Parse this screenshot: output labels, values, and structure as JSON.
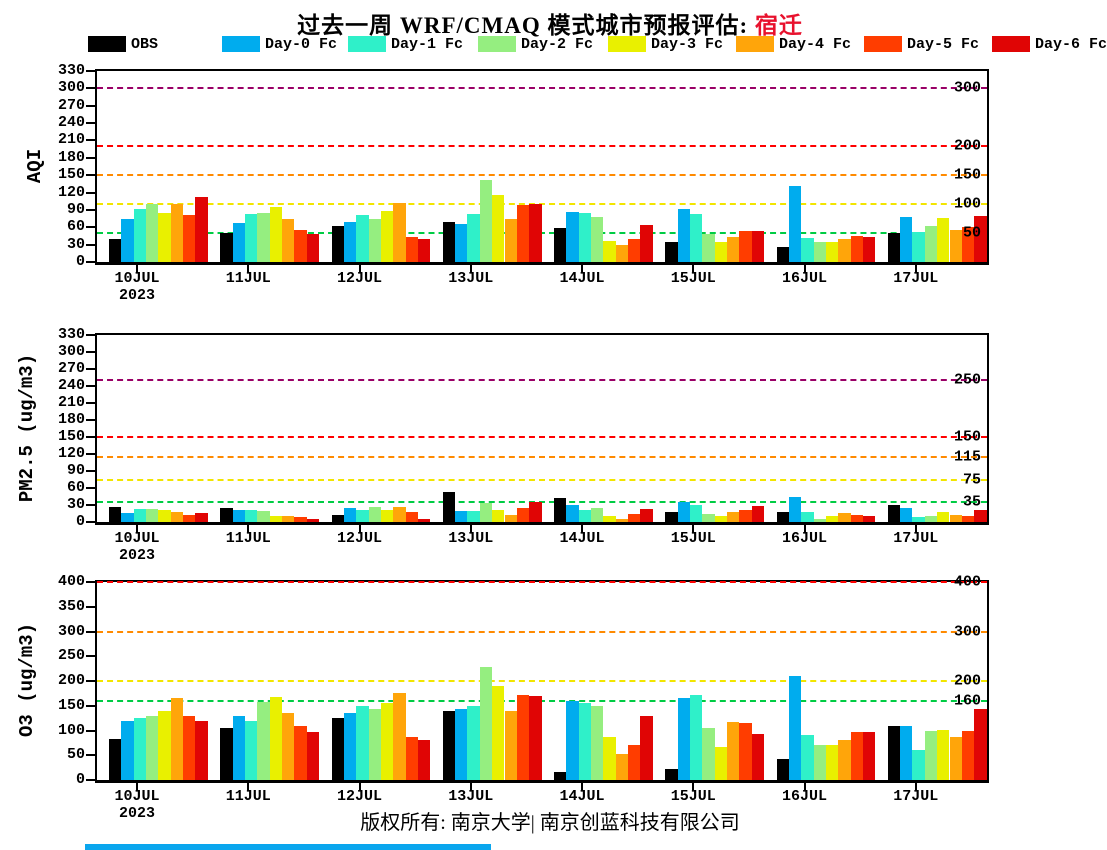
{
  "title": {
    "prefix": "过去一周 WRF/CMAQ 模式城市预报评估: ",
    "city": "宿迁",
    "city_color": "#e8112d"
  },
  "footer": {
    "copyright": "版权所有: 南京大学| 南京创蓝科技有限公司"
  },
  "year_label": "2023",
  "legend": [
    {
      "label": "OBS",
      "color": "#000000"
    },
    {
      "label": "Day-0 Fc",
      "color": "#00acee"
    },
    {
      "label": "Day-1 Fc",
      "color": "#2ff0c9"
    },
    {
      "label": "Day-2 Fc",
      "color": "#95ee80"
    },
    {
      "label": "Day-3 Fc",
      "color": "#e9f000"
    },
    {
      "label": "Day-4 Fc",
      "color": "#ffa50a"
    },
    {
      "label": "Day-5 Fc",
      "color": "#ff3d00"
    },
    {
      "label": "Day-6 Fc",
      "color": "#e00505"
    }
  ],
  "chart_data": [
    {
      "type": "bar",
      "id": "aqi",
      "ylabel": "AQI",
      "ylim": [
        0,
        330
      ],
      "ytick_step": 30,
      "grid": false,
      "legend_position": "top",
      "categories": [
        "10JUL",
        "11JUL",
        "12JUL",
        "13JUL",
        "14JUL",
        "15JUL",
        "16JUL",
        "17JUL"
      ],
      "series": [
        {
          "name": "OBS",
          "color": "#000000",
          "values": [
            40,
            50,
            62,
            70,
            58,
            35,
            26,
            50
          ]
        },
        {
          "name": "Day-0 Fc",
          "color": "#00acee",
          "values": [
            75,
            68,
            70,
            65,
            86,
            92,
            132,
            77
          ]
        },
        {
          "name": "Day-1 Fc",
          "color": "#2ff0c9",
          "values": [
            91,
            83,
            81,
            83,
            84,
            83,
            42,
            51
          ]
        },
        {
          "name": "Day-2 Fc",
          "color": "#95ee80",
          "values": [
            100,
            85,
            75,
            141,
            78,
            48,
            35,
            62
          ]
        },
        {
          "name": "Day-3 Fc",
          "color": "#e9f000",
          "values": [
            84,
            95,
            89,
            115,
            36,
            34,
            35,
            76
          ]
        },
        {
          "name": "Day-4 Fc",
          "color": "#ffa50a",
          "values": [
            100,
            75,
            102,
            74,
            30,
            43,
            40,
            56
          ]
        },
        {
          "name": "Day-5 Fc",
          "color": "#ff3d00",
          "values": [
            82,
            56,
            43,
            98,
            40,
            54,
            45,
            61
          ]
        },
        {
          "name": "Day-6 Fc",
          "color": "#e00505",
          "values": [
            113,
            48,
            39,
            100,
            64,
            54,
            44,
            80
          ]
        }
      ],
      "ref_lines": [
        {
          "value": 50,
          "label": "50",
          "color": "#00cc44"
        },
        {
          "value": 100,
          "label": "100",
          "color": "#f2e500"
        },
        {
          "value": 150,
          "label": "150",
          "color": "#ff8a00"
        },
        {
          "value": 200,
          "label": "200",
          "color": "#ff0000"
        },
        {
          "value": 300,
          "label": "300",
          "color": "#990066"
        }
      ]
    },
    {
      "type": "bar",
      "id": "pm25",
      "ylabel": "PM2.5 (ug/m3)",
      "ylim": [
        0,
        330
      ],
      "ytick_step": 30,
      "grid": false,
      "categories": [
        "10JUL",
        "11JUL",
        "12JUL",
        "13JUL",
        "14JUL",
        "15JUL",
        "16JUL",
        "17JUL"
      ],
      "series": [
        {
          "name": "OBS",
          "color": "#000000",
          "values": [
            27,
            24,
            13,
            53,
            42,
            18,
            17,
            30
          ]
        },
        {
          "name": "Day-0 Fc",
          "color": "#00acee",
          "values": [
            16,
            21,
            24,
            20,
            30,
            36,
            45,
            24
          ]
        },
        {
          "name": "Day-1 Fc",
          "color": "#2ff0c9",
          "values": [
            23,
            21,
            21,
            20,
            22,
            30,
            18,
            9
          ]
        },
        {
          "name": "Day-2 Fc",
          "color": "#95ee80",
          "values": [
            23,
            19,
            26,
            33,
            25,
            15,
            6,
            11
          ]
        },
        {
          "name": "Day-3 Fc",
          "color": "#e9f000",
          "values": [
            22,
            11,
            21,
            21,
            11,
            10,
            10,
            17
          ]
        },
        {
          "name": "Day-4 Fc",
          "color": "#ffa50a",
          "values": [
            17,
            10,
            26,
            13,
            5,
            17,
            16,
            12
          ]
        },
        {
          "name": "Day-5 Fc",
          "color": "#ff3d00",
          "values": [
            12,
            8,
            18,
            24,
            15,
            21,
            13,
            11
          ]
        },
        {
          "name": "Day-6 Fc",
          "color": "#e00505",
          "values": [
            16,
            6,
            6,
            36,
            23,
            28,
            10,
            21
          ]
        }
      ],
      "ref_lines": [
        {
          "value": 35,
          "label": "35",
          "color": "#00cc44"
        },
        {
          "value": 75,
          "label": "75",
          "color": "#f2e500"
        },
        {
          "value": 115,
          "label": "115",
          "color": "#ff8a00"
        },
        {
          "value": 150,
          "label": "150",
          "color": "#ff0000"
        },
        {
          "value": 250,
          "label": "250",
          "color": "#990066"
        }
      ]
    },
    {
      "type": "bar",
      "id": "o3",
      "ylabel": "O3 (ug/m3)",
      "ylim": [
        0,
        400
      ],
      "ytick_step": 50,
      "grid": false,
      "categories": [
        "10JUL",
        "11JUL",
        "12JUL",
        "13JUL",
        "14JUL",
        "15JUL",
        "16JUL",
        "17JUL"
      ],
      "series": [
        {
          "name": "OBS",
          "color": "#000000",
          "values": [
            83,
            105,
            126,
            140,
            16,
            23,
            43,
            110
          ]
        },
        {
          "name": "Day-0 Fc",
          "color": "#00acee",
          "values": [
            120,
            130,
            135,
            144,
            160,
            165,
            210,
            110
          ]
        },
        {
          "name": "Day-1 Fc",
          "color": "#2ff0c9",
          "values": [
            125,
            120,
            150,
            150,
            155,
            172,
            90,
            60
          ]
        },
        {
          "name": "Day-2 Fc",
          "color": "#95ee80",
          "values": [
            130,
            158,
            144,
            228,
            150,
            105,
            70,
            100
          ]
        },
        {
          "name": "Day-3 Fc",
          "color": "#e9f000",
          "values": [
            140,
            168,
            155,
            190,
            86,
            66,
            70,
            102
          ]
        },
        {
          "name": "Day-4 Fc",
          "color": "#ffa50a",
          "values": [
            165,
            135,
            175,
            140,
            53,
            118,
            80,
            87
          ]
        },
        {
          "name": "Day-5 Fc",
          "color": "#ff3d00",
          "values": [
            130,
            110,
            87,
            172,
            70,
            115,
            96,
            100
          ]
        },
        {
          "name": "Day-6 Fc",
          "color": "#e00505",
          "values": [
            120,
            97,
            80,
            170,
            130,
            92,
            96,
            143
          ]
        }
      ],
      "ref_lines": [
        {
          "value": 160,
          "label": "160",
          "color": "#00cc44"
        },
        {
          "value": 200,
          "label": "200",
          "color": "#f2e500"
        },
        {
          "value": 300,
          "label": "300",
          "color": "#ff8a00"
        },
        {
          "value": 400,
          "label": "400",
          "color": "#ff0000"
        }
      ]
    }
  ]
}
